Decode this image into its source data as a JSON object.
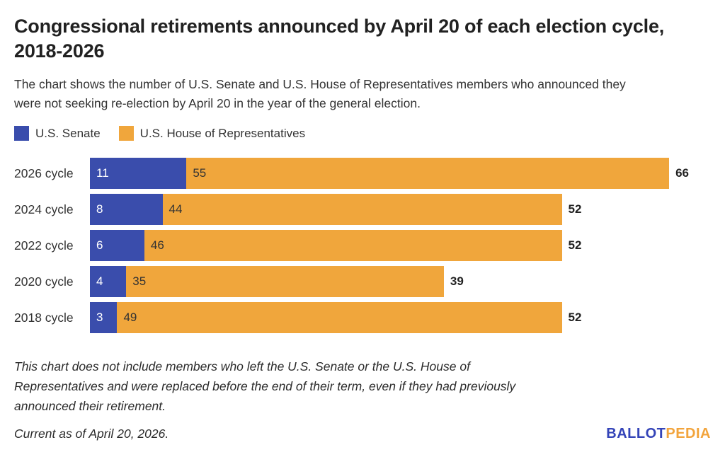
{
  "header": {
    "title": "Congressional retirements announced by April 20 of each election cycle, 2018-2026",
    "subtitle": "The chart shows the number of U.S. Senate and U.S. House of Representatives members who announced they were not seeking re-election by April 20 in the year of the general election."
  },
  "chart_data": {
    "type": "bar",
    "orientation": "horizontal",
    "stacked": true,
    "grid": false,
    "legend_position": "top-left",
    "value_labels": "inside-start",
    "total_labels": "outside-end",
    "categories": [
      "2026 cycle",
      "2024 cycle",
      "2022 cycle",
      "2020 cycle",
      "2018 cycle"
    ],
    "series": [
      {
        "name": "U.S. Senate",
        "color": "#3A4DAC",
        "label_color": "#FFFFFF",
        "values": [
          11,
          8,
          6,
          4,
          3
        ]
      },
      {
        "name": "U.S. House of Representatives",
        "color": "#F0A63C",
        "label_color": "#333333",
        "values": [
          55,
          44,
          46,
          35,
          49
        ]
      }
    ],
    "totals": [
      66,
      52,
      52,
      39,
      52
    ],
    "xlim": [
      0,
      66
    ]
  },
  "footnote": "This chart does not include members who left the U.S. Senate or the U.S. House of Representatives and were replaced before the end of their term, even if they had previously announced their retirement.",
  "footer": {
    "current_as_of": "Current as of April 20, 2026.",
    "logo": {
      "part1": "BALLOT",
      "part2": "PEDIA",
      "part1_color": "#3444B8",
      "part2_color": "#F2A43C"
    }
  }
}
